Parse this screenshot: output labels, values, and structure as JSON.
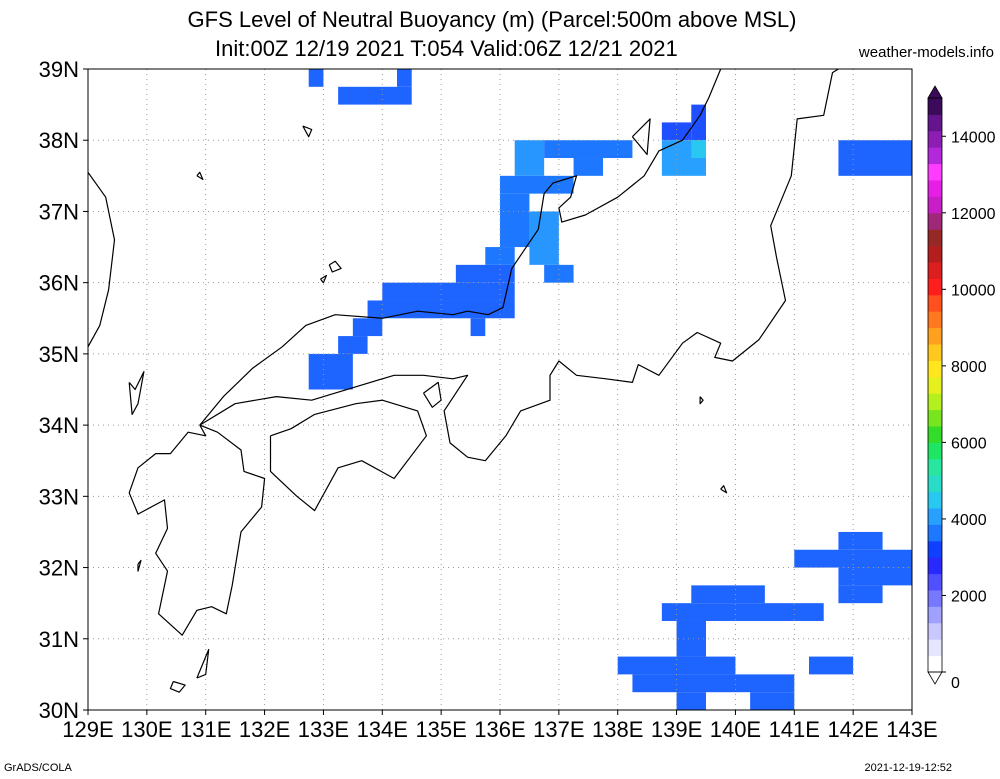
{
  "header": {
    "title_line1": "GFS Level of Neutral Buoyancy (m) (Parcel:500m above MSL)",
    "title_line2": "Init:00Z 12/19 2021 T:054 Valid:06Z 12/21 2021",
    "credit": "weather-models.info"
  },
  "footer": {
    "left": "GrADS/COLA",
    "right": "2021-12-19-12:52"
  },
  "map": {
    "lon_range": [
      129,
      143
    ],
    "lat_range": [
      30,
      39
    ],
    "lon_labels": [
      "129E",
      "130E",
      "131E",
      "132E",
      "133E",
      "134E",
      "135E",
      "136E",
      "137E",
      "138E",
      "139E",
      "140E",
      "141E",
      "142E",
      "143E"
    ],
    "lat_labels": [
      "30N",
      "31N",
      "32N",
      "33N",
      "34N",
      "35N",
      "36N",
      "37N",
      "38N",
      "39N"
    ],
    "grid": "dotted, 1 degree",
    "cell_deg": 0.25
  },
  "colorbar": {
    "min": 0,
    "max": 15000,
    "labels": [
      "0",
      "2000",
      "4000",
      "6000",
      "8000",
      "10000",
      "12000",
      "14000"
    ],
    "colors": [
      "#ffffff",
      "#e6e6ff",
      "#c8c8ff",
      "#a0a0ff",
      "#7878ff",
      "#5050ff",
      "#2828ff",
      "#1040ff",
      "#1e78ff",
      "#28a0ff",
      "#28c8f0",
      "#28dcc8",
      "#28e6a0",
      "#1ee664",
      "#32dc28",
      "#78e61e",
      "#b4f01e",
      "#e6f01e",
      "#ffe61e",
      "#ffc81e",
      "#ffa01e",
      "#ff781e",
      "#ff501e",
      "#ff1e1e",
      "#dc1e1e",
      "#b41e1e",
      "#962828",
      "#a02878",
      "#c81ec8",
      "#e61ee6",
      "#ff3cff",
      "#b428dc",
      "#8c1eb4",
      "#64148c",
      "#3c0a5a"
    ]
  },
  "fields": [
    {
      "color": "#1e64ff",
      "lon": [
        132.75,
        133.0
      ],
      "lat": [
        38.75,
        39.0
      ]
    },
    {
      "color": "#1e64ff",
      "lon": [
        133.25,
        134.5
      ],
      "lat": [
        38.5,
        38.75
      ]
    },
    {
      "color": "#1e64ff",
      "lon": [
        134.25,
        134.5
      ],
      "lat": [
        38.75,
        39.0
      ]
    },
    {
      "color": "#1e64ff",
      "lon": [
        132.75,
        133.5
      ],
      "lat": [
        34.5,
        35.0
      ]
    },
    {
      "color": "#1e64ff",
      "lon": [
        133.25,
        133.75
      ],
      "lat": [
        35.0,
        35.25
      ]
    },
    {
      "color": "#1e64ff",
      "lon": [
        133.5,
        134.0
      ],
      "lat": [
        35.25,
        35.5
      ]
    },
    {
      "color": "#1e64ff",
      "lon": [
        133.75,
        136.25
      ],
      "lat": [
        35.5,
        35.75
      ]
    },
    {
      "color": "#1e64ff",
      "lon": [
        134.0,
        136.25
      ],
      "lat": [
        35.75,
        36.0
      ]
    },
    {
      "color": "#1e64ff",
      "lon": [
        135.5,
        135.75
      ],
      "lat": [
        35.25,
        35.5
      ]
    },
    {
      "color": "#1e64ff",
      "lon": [
        135.25,
        136.25
      ],
      "lat": [
        36.0,
        36.25
      ]
    },
    {
      "color": "#1e78ff",
      "lon": [
        135.75,
        136.25
      ],
      "lat": [
        36.25,
        36.5
      ]
    },
    {
      "color": "#1e78ff",
      "lon": [
        136.0,
        136.5
      ],
      "lat": [
        36.5,
        37.25
      ]
    },
    {
      "color": "#1e78ff",
      "lon": [
        136.75,
        137.25
      ],
      "lat": [
        36.0,
        36.25
      ]
    },
    {
      "color": "#1e78ff",
      "lon": [
        136.0,
        137.25
      ],
      "lat": [
        37.25,
        37.5
      ]
    },
    {
      "color": "#2896ff",
      "lon": [
        136.25,
        136.75
      ],
      "lat": [
        37.5,
        38.0
      ]
    },
    {
      "color": "#1e78ff",
      "lon": [
        136.75,
        138.25
      ],
      "lat": [
        37.75,
        38.0
      ]
    },
    {
      "color": "#1e78ff",
      "lon": [
        137.25,
        137.75
      ],
      "lat": [
        37.5,
        37.75
      ]
    },
    {
      "color": "#2896ff",
      "lon": [
        136.5,
        137.0
      ],
      "lat": [
        36.25,
        37.0
      ]
    },
    {
      "color": "#1e50ff",
      "lon": [
        138.75,
        139.25
      ],
      "lat": [
        38.0,
        38.25
      ]
    },
    {
      "color": "#1e50ff",
      "lon": [
        139.25,
        139.5
      ],
      "lat": [
        38.0,
        38.5
      ]
    },
    {
      "color": "#28a0ff",
      "lon": [
        138.75,
        139.5
      ],
      "lat": [
        37.5,
        38.0
      ]
    },
    {
      "color": "#28c8f0",
      "lon": [
        139.25,
        139.5
      ],
      "lat": [
        37.75,
        38.0
      ]
    },
    {
      "color": "#1e64ff",
      "lon": [
        141.75,
        143.0
      ],
      "lat": [
        37.5,
        38.0
      ]
    },
    {
      "color": "#1e64ff",
      "lon": [
        141.0,
        143.0
      ],
      "lat": [
        32.0,
        32.25
      ]
    },
    {
      "color": "#1e64ff",
      "lon": [
        141.75,
        142.5
      ],
      "lat": [
        32.25,
        32.5
      ]
    },
    {
      "color": "#1e64ff",
      "lon": [
        141.75,
        143.0
      ],
      "lat": [
        31.75,
        32.0
      ]
    },
    {
      "color": "#1e64ff",
      "lon": [
        141.75,
        142.5
      ],
      "lat": [
        31.5,
        31.75
      ]
    },
    {
      "color": "#1e64ff",
      "lon": [
        139.25,
        140.5
      ],
      "lat": [
        31.5,
        31.75
      ]
    },
    {
      "color": "#1e64ff",
      "lon": [
        138.75,
        141.5
      ],
      "lat": [
        31.25,
        31.5
      ]
    },
    {
      "color": "#1e64ff",
      "lon": [
        139.0,
        139.5
      ],
      "lat": [
        30.75,
        31.25
      ]
    },
    {
      "color": "#1e64ff",
      "lon": [
        138.0,
        140.0
      ],
      "lat": [
        30.5,
        30.75
      ]
    },
    {
      "color": "#1e64ff",
      "lon": [
        138.25,
        141.0
      ],
      "lat": [
        30.25,
        30.5
      ]
    },
    {
      "color": "#1e64ff",
      "lon": [
        141.25,
        142.0
      ],
      "lat": [
        30.5,
        30.75
      ]
    },
    {
      "color": "#1e64ff",
      "lon": [
        139.0,
        139.5
      ],
      "lat": [
        30.0,
        30.25
      ]
    },
    {
      "color": "#1e64ff",
      "lon": [
        140.25,
        141.0
      ],
      "lat": [
        30.0,
        30.25
      ]
    }
  ],
  "coastlines": [
    [
      [
        129.0,
        37.55
      ],
      [
        129.3,
        37.2
      ],
      [
        129.45,
        36.6
      ],
      [
        129.35,
        35.9
      ],
      [
        129.2,
        35.4
      ],
      [
        129.0,
        35.1
      ]
    ],
    [
      [
        129.7,
        34.6
      ],
      [
        129.8,
        34.5
      ],
      [
        129.95,
        34.75
      ],
      [
        129.85,
        34.3
      ],
      [
        129.75,
        34.15
      ],
      [
        129.7,
        34.6
      ]
    ],
    [
      [
        130.85,
        37.5
      ],
      [
        130.95,
        37.45
      ],
      [
        130.9,
        37.55
      ],
      [
        130.85,
        37.5
      ]
    ],
    [
      [
        132.65,
        38.2
      ],
      [
        132.75,
        38.05
      ],
      [
        132.8,
        38.15
      ],
      [
        132.65,
        38.2
      ]
    ],
    [
      [
        130.9,
        34.0
      ],
      [
        131.5,
        34.3
      ],
      [
        132.2,
        34.4
      ],
      [
        132.8,
        34.35
      ],
      [
        133.6,
        34.55
      ],
      [
        134.2,
        34.7
      ],
      [
        134.7,
        34.7
      ],
      [
        135.2,
        34.65
      ],
      [
        135.45,
        34.7
      ],
      [
        135.25,
        34.45
      ],
      [
        135.05,
        34.2
      ],
      [
        135.15,
        33.75
      ],
      [
        135.45,
        33.55
      ],
      [
        135.75,
        33.5
      ],
      [
        136.1,
        33.85
      ],
      [
        136.35,
        34.2
      ],
      [
        136.85,
        34.35
      ],
      [
        136.85,
        34.7
      ],
      [
        137.0,
        34.9
      ],
      [
        137.3,
        34.7
      ],
      [
        137.8,
        34.65
      ],
      [
        138.25,
        34.6
      ],
      [
        138.35,
        34.85
      ],
      [
        138.7,
        34.7
      ],
      [
        139.1,
        35.15
      ],
      [
        139.35,
        35.3
      ],
      [
        139.75,
        35.15
      ],
      [
        139.65,
        34.95
      ],
      [
        139.95,
        34.9
      ],
      [
        140.4,
        35.2
      ],
      [
        140.85,
        35.75
      ],
      [
        140.7,
        36.35
      ],
      [
        140.6,
        36.8
      ],
      [
        140.95,
        37.5
      ],
      [
        141.05,
        38.3
      ],
      [
        141.5,
        38.35
      ],
      [
        141.65,
        38.95
      ],
      [
        141.75,
        39.0
      ]
    ],
    [
      [
        130.9,
        34.0
      ],
      [
        131.0,
        33.85
      ],
      [
        130.7,
        33.9
      ],
      [
        130.4,
        33.6
      ],
      [
        130.15,
        33.6
      ],
      [
        129.85,
        33.4
      ],
      [
        129.7,
        33.05
      ],
      [
        129.85,
        32.75
      ],
      [
        130.3,
        32.95
      ],
      [
        130.35,
        32.55
      ],
      [
        130.15,
        32.2
      ],
      [
        130.35,
        31.95
      ],
      [
        130.2,
        31.35
      ],
      [
        130.6,
        31.05
      ],
      [
        130.85,
        31.4
      ],
      [
        131.1,
        31.45
      ],
      [
        131.35,
        31.35
      ],
      [
        131.45,
        31.75
      ],
      [
        131.6,
        32.5
      ],
      [
        131.95,
        32.85
      ],
      [
        132.0,
        33.25
      ],
      [
        131.65,
        33.35
      ],
      [
        131.6,
        33.65
      ],
      [
        131.2,
        33.9
      ],
      [
        130.9,
        34.0
      ]
    ],
    [
      [
        132.1,
        33.85
      ],
      [
        132.45,
        33.95
      ],
      [
        132.85,
        34.15
      ],
      [
        133.55,
        34.3
      ],
      [
        134.0,
        34.35
      ],
      [
        134.6,
        34.2
      ],
      [
        134.75,
        33.85
      ],
      [
        134.2,
        33.25
      ],
      [
        133.65,
        33.5
      ],
      [
        133.25,
        33.4
      ],
      [
        132.85,
        32.8
      ],
      [
        132.55,
        33.0
      ],
      [
        132.1,
        33.35
      ],
      [
        132.1,
        33.85
      ]
    ],
    [
      [
        134.7,
        34.45
      ],
      [
        134.95,
        34.6
      ],
      [
        135.0,
        34.35
      ],
      [
        134.85,
        34.25
      ],
      [
        134.7,
        34.45
      ]
    ],
    [
      [
        135.45,
        35.6
      ],
      [
        135.8,
        35.55
      ],
      [
        136.05,
        35.65
      ],
      [
        136.2,
        36.2
      ],
      [
        136.65,
        36.75
      ],
      [
        136.75,
        37.25
      ],
      [
        136.9,
        37.4
      ],
      [
        137.3,
        37.5
      ],
      [
        137.2,
        37.2
      ],
      [
        137.0,
        37.05
      ],
      [
        137.05,
        36.85
      ],
      [
        137.45,
        36.95
      ],
      [
        138.0,
        37.2
      ],
      [
        138.45,
        37.5
      ],
      [
        138.7,
        37.85
      ],
      [
        139.1,
        38.0
      ],
      [
        139.4,
        38.35
      ],
      [
        139.55,
        38.6
      ],
      [
        139.75,
        39.0
      ]
    ],
    [
      [
        135.45,
        35.6
      ],
      [
        135.2,
        35.55
      ],
      [
        134.6,
        35.6
      ],
      [
        134.0,
        35.5
      ],
      [
        133.2,
        35.55
      ],
      [
        132.7,
        35.4
      ],
      [
        132.3,
        35.1
      ],
      [
        131.8,
        34.8
      ],
      [
        131.3,
        34.4
      ],
      [
        130.9,
        34.0
      ]
    ],
    [
      [
        138.25,
        38.05
      ],
      [
        138.55,
        38.3
      ],
      [
        138.5,
        37.8
      ],
      [
        138.25,
        38.05
      ]
    ],
    [
      [
        133.1,
        36.25
      ],
      [
        133.2,
        36.3
      ],
      [
        133.3,
        36.2
      ],
      [
        133.15,
        36.15
      ],
      [
        133.1,
        36.25
      ]
    ],
    [
      [
        132.95,
        36.05
      ],
      [
        133.05,
        36.1
      ],
      [
        133.0,
        36.0
      ],
      [
        132.95,
        36.05
      ]
    ],
    [
      [
        139.4,
        34.4
      ],
      [
        139.45,
        34.35
      ],
      [
        139.4,
        34.3
      ],
      [
        139.4,
        34.4
      ]
    ],
    [
      [
        139.75,
        33.1
      ],
      [
        139.8,
        33.15
      ],
      [
        139.85,
        33.05
      ],
      [
        139.75,
        33.1
      ]
    ],
    [
      [
        130.45,
        30.4
      ],
      [
        130.65,
        30.35
      ],
      [
        130.55,
        30.25
      ],
      [
        130.4,
        30.3
      ],
      [
        130.45,
        30.4
      ]
    ],
    [
      [
        130.85,
        30.45
      ],
      [
        131.05,
        30.85
      ],
      [
        131.0,
        30.5
      ],
      [
        130.85,
        30.45
      ]
    ],
    [
      [
        129.85,
        32.05
      ],
      [
        129.9,
        32.1
      ],
      [
        129.85,
        31.95
      ],
      [
        129.85,
        32.05
      ]
    ]
  ]
}
